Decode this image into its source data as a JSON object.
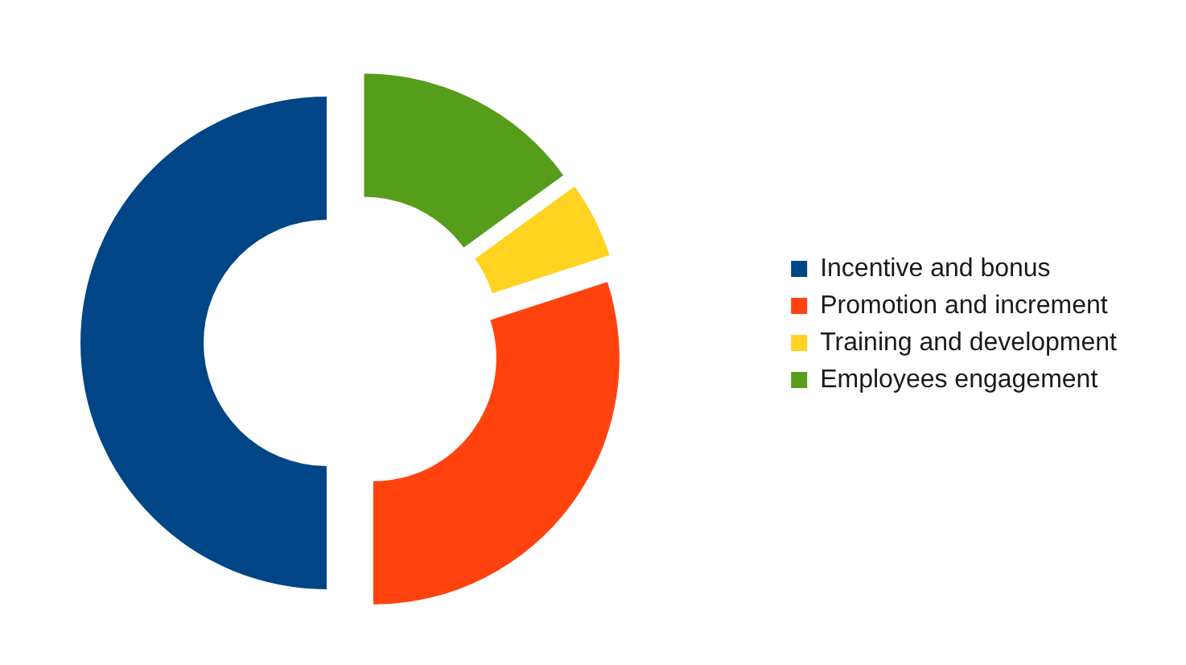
{
  "chart_data": {
    "type": "donut",
    "categories": [
      "Incentive and bonus",
      "Promotion and increment",
      "Training and development",
      "Employees engagement"
    ],
    "values": [
      50,
      30,
      5,
      15
    ],
    "colors": [
      "#004586",
      "#ff420e",
      "#ffd320",
      "#579d1c"
    ],
    "legend": "right"
  }
}
